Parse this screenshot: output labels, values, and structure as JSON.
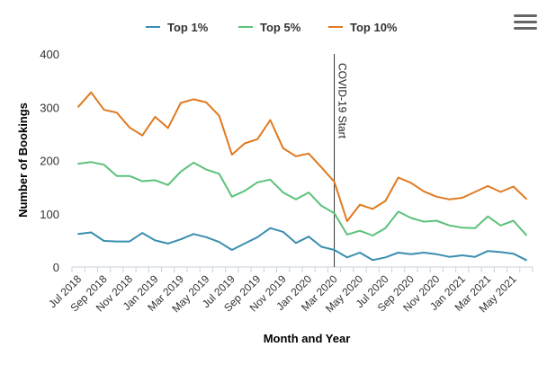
{
  "ui": {
    "menu_icon": "hamburger-menu-icon"
  },
  "chart_data": {
    "type": "line",
    "title": "",
    "xlabel": "Month and Year",
    "ylabel": "Number of Bookings",
    "ylim": [
      0,
      400
    ],
    "yticks": [
      0,
      100,
      200,
      300,
      400
    ],
    "grid": "none",
    "legend_position": "top-center",
    "categories": [
      "Jul 2018",
      "Aug 2018",
      "Sep 2018",
      "Oct 2018",
      "Nov 2018",
      "Dec 2018",
      "Jan 2019",
      "Feb 2019",
      "Mar 2019",
      "Apr 2019",
      "May 2019",
      "Jun 2019",
      "Jul 2019",
      "Aug 2019",
      "Sep 2019",
      "Oct 2019",
      "Nov 2019",
      "Dec 2019",
      "Jan 2020",
      "Feb 2020",
      "Mar 2020",
      "Apr 2020",
      "May 2020",
      "Jun 2020",
      "Jul 2020",
      "Aug 2020",
      "Sep 2020",
      "Oct 2020",
      "Nov 2020",
      "Dec 2020",
      "Jan 2021",
      "Feb 2021",
      "Mar 2021",
      "Apr 2021",
      "May 2021",
      "Jun 2021"
    ],
    "tick_labels": [
      "Jul 2018",
      "Sep 2018",
      "Nov 2018",
      "Jan 2019",
      "Mar 2019",
      "May 2019",
      "Jul 2019",
      "Sep 2019",
      "Nov 2019",
      "Jan 2020",
      "Mar 2020",
      "May 2020",
      "Jul 2020",
      "Sep 2020",
      "Nov 2020",
      "Jan 2021",
      "Mar 2021",
      "May 2021"
    ],
    "series": [
      {
        "name": "Top 1%",
        "color": "#3a8fb0",
        "values": [
          62,
          65,
          49,
          48,
          48,
          64,
          50,
          44,
          52,
          62,
          56,
          47,
          32,
          44,
          56,
          73,
          66,
          45,
          57,
          38,
          32,
          18,
          27,
          13,
          18,
          27,
          24,
          27,
          24,
          19,
          22,
          19,
          30,
          28,
          25,
          13
        ]
      },
      {
        "name": "Top 5%",
        "color": "#5bc27a",
        "values": [
          194,
          197,
          192,
          171,
          171,
          161,
          163,
          154,
          179,
          196,
          183,
          175,
          132,
          143,
          159,
          164,
          140,
          127,
          140,
          115,
          101,
          61,
          68,
          59,
          73,
          104,
          92,
          85,
          87,
          78,
          74,
          73,
          95,
          78,
          87,
          60
        ]
      },
      {
        "name": "Top 10%",
        "color": "#e07a1f",
        "values": [
          301,
          328,
          295,
          290,
          262,
          247,
          282,
          261,
          308,
          315,
          309,
          284,
          211,
          232,
          240,
          276,
          223,
          208,
          213,
          187,
          160,
          86,
          117,
          109,
          124,
          168,
          158,
          142,
          132,
          127,
          130,
          141,
          152,
          141,
          151,
          128
        ]
      }
    ],
    "annotations": [
      {
        "label": "COVID-19 Start",
        "x": "Mar 2020"
      }
    ]
  }
}
